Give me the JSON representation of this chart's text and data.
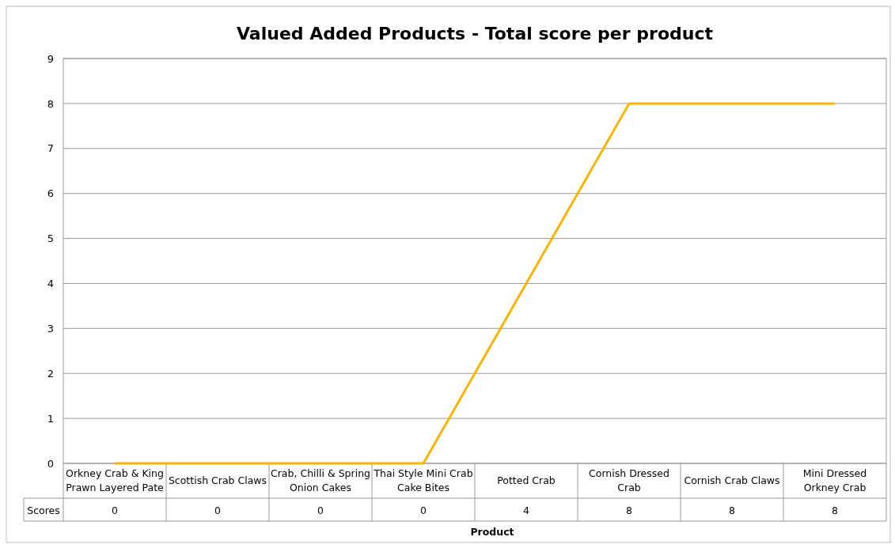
{
  "chart_data": {
    "type": "line",
    "title": "Valued Added Products - Total score per product",
    "xlabel": "Product",
    "categories": [
      "Orkney Crab & King Prawn Layered Pate",
      "Scottish Crab Claws",
      "Crab, Chilli & Spring Onion Cakes",
      "Thai Style Mini Crab Cake Bites",
      "Potted Crab",
      "Cornish Dressed Crab",
      "Cornish Crab Claws",
      "Mini Dressed Orkney Crab"
    ],
    "series": [
      {
        "name": "Scores",
        "color": "#f7b500",
        "values": [
          0,
          0,
          0,
          0,
          4,
          8,
          8,
          8
        ]
      }
    ],
    "ylim": [
      0,
      9
    ],
    "yticks": [
      0,
      1,
      2,
      3,
      4,
      5,
      6,
      7,
      8,
      9
    ],
    "grid": "y",
    "data_labels": true,
    "marker": "none"
  }
}
